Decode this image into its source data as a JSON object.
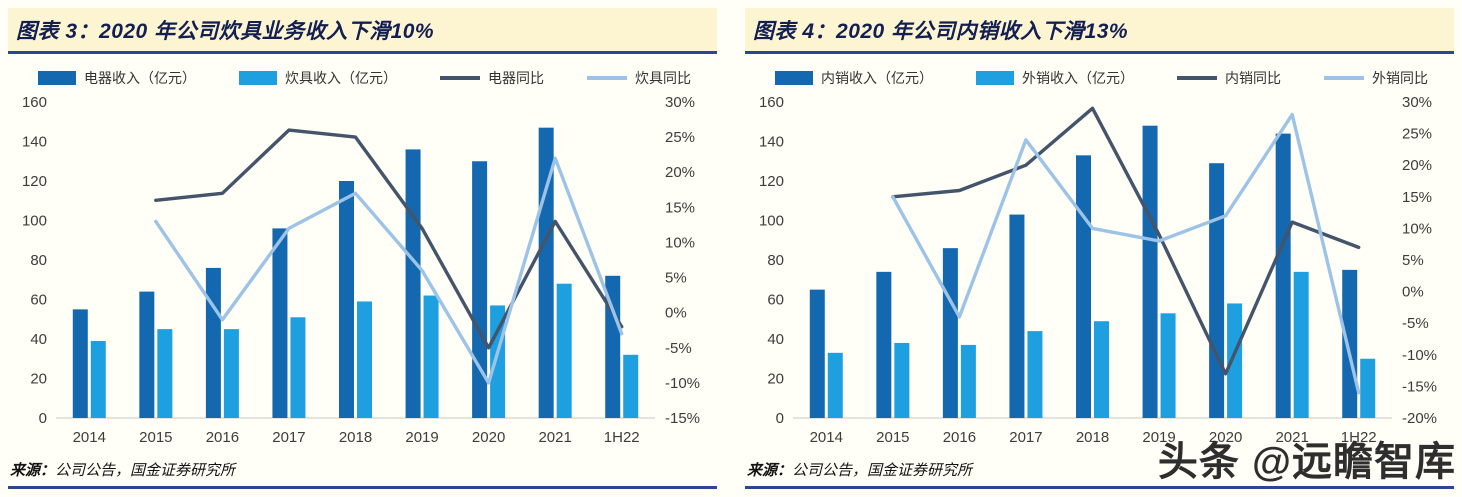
{
  "page": {
    "watermark": "头条 @远瞻智库"
  },
  "colors": {
    "page_bg": "#fffef7",
    "header_bg": "#fdf5d2",
    "header_text": "#131f52",
    "rule_blue": "#2a4796",
    "axis_text": "#3d3d3d",
    "baseline": "#c8c8c8",
    "legend_text": "#333333",
    "watermark_text": "#2e2e2e"
  },
  "chart_data": [
    {
      "type": "bar",
      "subtype": "bar-line-combo",
      "title": "图表 3：2020 年公司炊具业务收入下滑10%",
      "categories": [
        "2014",
        "2015",
        "2016",
        "2017",
        "2018",
        "2019",
        "2020",
        "2021",
        "1H22"
      ],
      "series": [
        {
          "name": "电器收入（亿元）",
          "type": "bar",
          "axis": "left",
          "color": "#1368b0",
          "values": [
            55,
            64,
            76,
            96,
            120,
            136,
            130,
            147,
            72
          ]
        },
        {
          "name": "炊具收入（亿元）",
          "type": "bar",
          "axis": "left",
          "color": "#1e9fe0",
          "values": [
            39,
            45,
            45,
            51,
            59,
            62,
            57,
            68,
            32
          ]
        },
        {
          "name": "电器同比",
          "type": "line",
          "axis": "right",
          "color": "#44546a",
          "values": [
            null,
            16,
            17,
            26,
            25,
            12,
            -5,
            13,
            -2
          ]
        },
        {
          "name": "炊具同比",
          "type": "line",
          "axis": "right",
          "color": "#9dc3e6",
          "values": [
            null,
            13,
            -1,
            12,
            17,
            6,
            -10,
            22,
            -3
          ]
        }
      ],
      "left_axis": {
        "min": 0,
        "max": 160,
        "step": 20
      },
      "right_axis": {
        "min": -15,
        "max": 30,
        "step": 5,
        "suffix": "%"
      },
      "legend_position": "top",
      "grid": false,
      "source_label": "来源：",
      "source_text": "公司公告，国金证券研究所"
    },
    {
      "type": "bar",
      "subtype": "bar-line-combo",
      "title": "图表 4：2020 年公司内销收入下滑13%",
      "categories": [
        "2014",
        "2015",
        "2016",
        "2017",
        "2018",
        "2019",
        "2020",
        "2021",
        "1H22"
      ],
      "series": [
        {
          "name": "内销收入（亿元）",
          "type": "bar",
          "axis": "left",
          "color": "#1368b0",
          "values": [
            65,
            74,
            86,
            103,
            133,
            148,
            129,
            144,
            75
          ]
        },
        {
          "name": "外销收入（亿元）",
          "type": "bar",
          "axis": "left",
          "color": "#1e9fe0",
          "values": [
            33,
            38,
            37,
            44,
            49,
            53,
            58,
            74,
            30
          ]
        },
        {
          "name": "内销同比",
          "type": "line",
          "axis": "right",
          "color": "#44546a",
          "values": [
            null,
            15,
            16,
            20,
            29,
            9,
            -13,
            11,
            7
          ]
        },
        {
          "name": "外销同比",
          "type": "line",
          "axis": "right",
          "color": "#9dc3e6",
          "values": [
            null,
            15,
            -4,
            24,
            10,
            8,
            12,
            28,
            -16
          ]
        }
      ],
      "left_axis": {
        "min": 0,
        "max": 160,
        "step": 20
      },
      "right_axis": {
        "min": -20,
        "max": 30,
        "step": 5,
        "suffix": "%"
      },
      "legend_position": "top",
      "grid": false,
      "source_label": "来源：",
      "source_text": "公司公告，国金证券研究所"
    }
  ]
}
